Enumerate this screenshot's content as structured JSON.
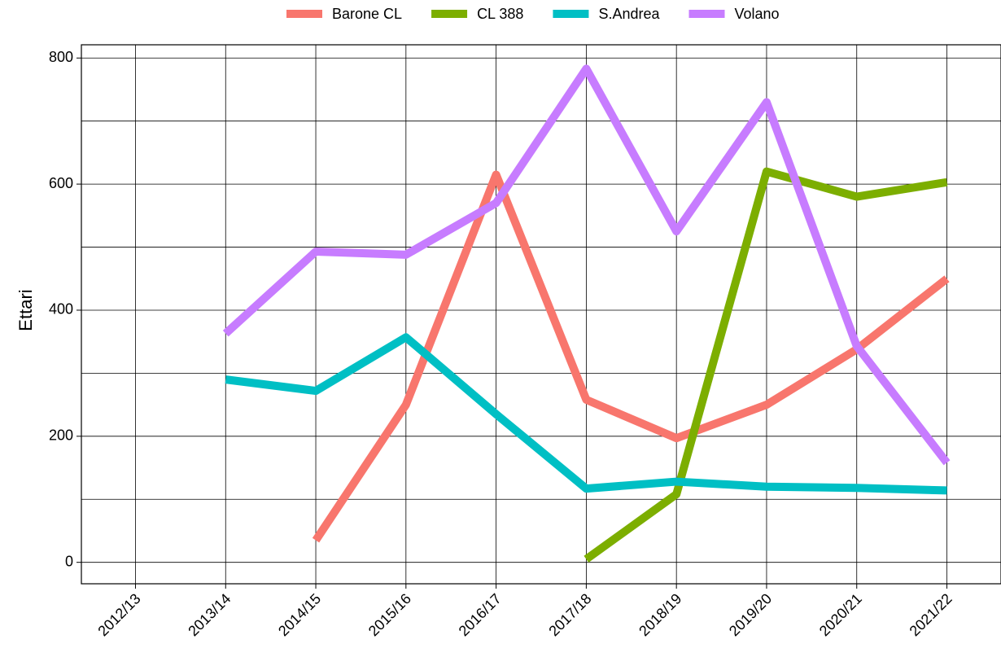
{
  "chart_data": {
    "type": "line",
    "ylabel": "Ettari",
    "categories": [
      "2012/13",
      "2013/14",
      "2014/15",
      "2015/16",
      "2016/17",
      "2017/18",
      "2018/19",
      "2019/20",
      "2020/21",
      "2021/22"
    ],
    "series": [
      {
        "name": "Barone CL",
        "color": "#F8766D",
        "values": [
          null,
          null,
          35,
          250,
          615,
          258,
          197,
          250,
          338,
          450
        ]
      },
      {
        "name": "CL 388",
        "color": "#7CAE00",
        "values": [
          null,
          null,
          null,
          null,
          null,
          5,
          108,
          620,
          580,
          603
        ]
      },
      {
        "name": "S.Andrea",
        "color": "#00BFC4",
        "values": [
          null,
          290,
          272,
          357,
          235,
          117,
          128,
          120,
          118,
          114
        ]
      },
      {
        "name": "Volano",
        "color": "#C77CFF",
        "values": [
          null,
          363,
          493,
          488,
          570,
          783,
          525,
          730,
          343,
          158
        ]
      }
    ],
    "ylim": [
      -34,
      821
    ],
    "yticks": [
      0,
      200,
      400,
      600,
      800
    ],
    "yminor": [
      100,
      300,
      500,
      700
    ],
    "grid": true,
    "legend": "top"
  }
}
